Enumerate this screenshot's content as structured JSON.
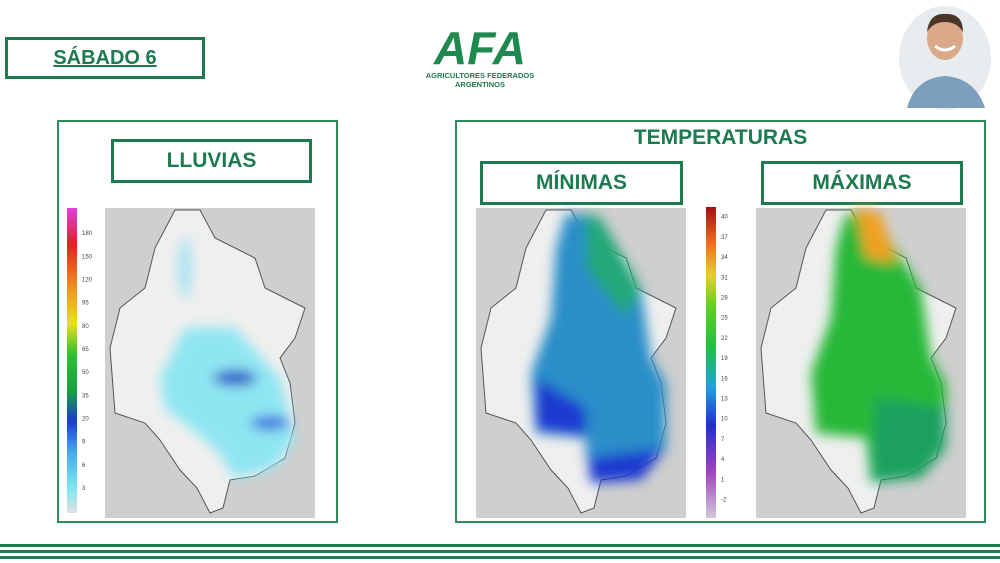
{
  "header": {
    "day": "SÁBADO 6",
    "logo": "AFA",
    "logo_subtitle_1": "AGRICULTORES FEDERADOS",
    "logo_subtitle_2": "ARGENTINOS"
  },
  "rain_panel": {
    "title": "LLUVIAS",
    "scale_labels": [
      "180",
      "150",
      "120",
      "95",
      "80",
      "65",
      "50",
      "35",
      "20",
      "9",
      "6",
      "3"
    ]
  },
  "temperature_panel": {
    "title": "TEMPERATURAS",
    "min_title": "MÍNIMAS",
    "max_title": "MÁXIMAS",
    "scale_labels": [
      "40",
      "37",
      "34",
      "31",
      "28",
      "25",
      "22",
      "19",
      "16",
      "13",
      "10",
      "7",
      "4",
      "1",
      "-2"
    ]
  }
}
